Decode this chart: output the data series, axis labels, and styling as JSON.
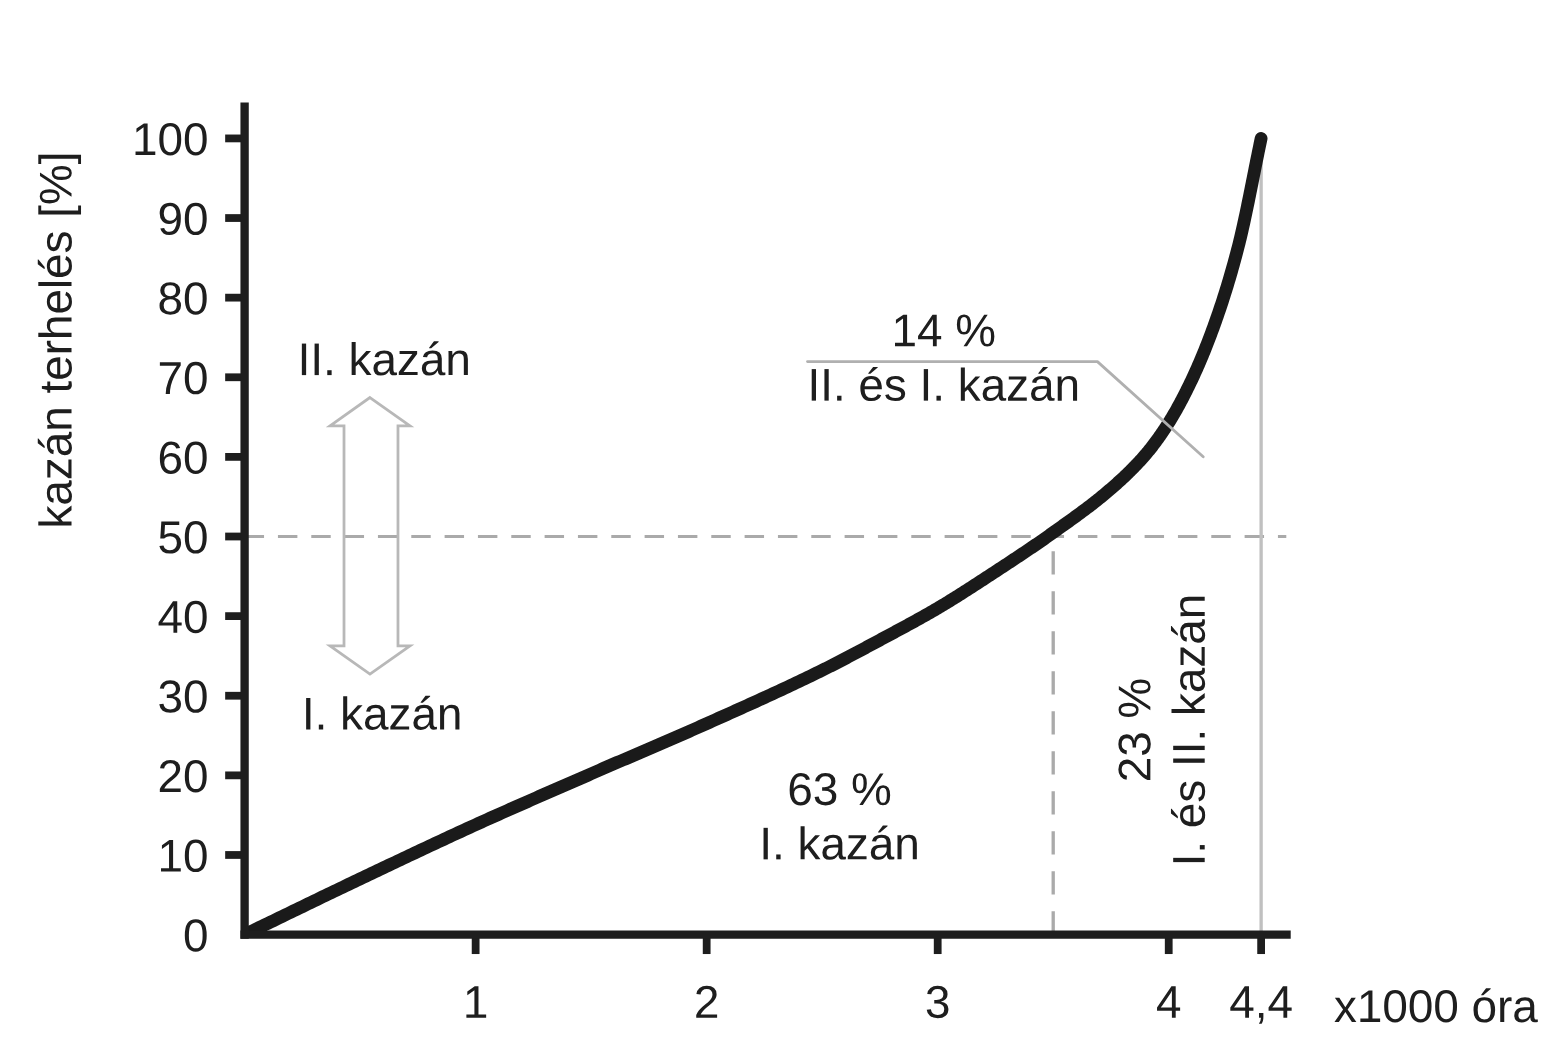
{
  "chart_data": {
    "type": "line",
    "xlabel": "x1000 óra",
    "ylabel": "kazán terhelés [%]",
    "x": [
      0,
      0.5,
      1,
      1.5,
      2,
      2.5,
      2.75,
      3,
      3.25,
      3.5,
      3.75,
      3.9,
      4,
      4.1,
      4.2,
      4.3,
      4.4
    ],
    "values": [
      0,
      7,
      13.8,
      20.2,
      26.5,
      33.2,
      37,
      41,
      45.6,
      50.5,
      56,
      60.3,
      64.3,
      69.7,
      76.8,
      86.3,
      100
    ],
    "color": "#1a1a1a",
    "line_style": "solid",
    "xlim": [
      0,
      4.51
    ],
    "ylim": [
      0,
      104
    ],
    "xticks": [
      1,
      2,
      3,
      4,
      {
        "value": 4.4,
        "label": "4,4"
      }
    ],
    "yticks": [
      0,
      10,
      20,
      30,
      40,
      50,
      60,
      70,
      80,
      90,
      100
    ],
    "ref_lines": [
      {
        "axis": "y",
        "value": 50,
        "color": "#aaaaaa",
        "line_style": "dashed"
      },
      {
        "axis": "x",
        "value": 3.5,
        "color": "#aaaaaa",
        "line_style": "dashed"
      },
      {
        "axis": "x",
        "value": 4.4,
        "color": "#c0c0c0",
        "line_style": "solid"
      }
    ],
    "annotations": [
      "14 %\nII. és I. kazán",
      "63 %\nI. kazán",
      "23 %\nI. és II. kazán",
      "II. kazán",
      "I. kazán"
    ]
  }
}
